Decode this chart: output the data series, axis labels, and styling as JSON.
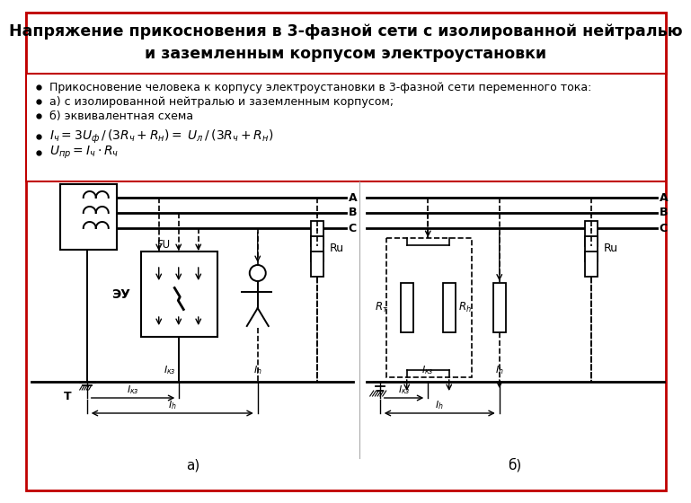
{
  "title_line1": "Напряжение прикосновения в 3-фазной сети с изолированной нейтралью",
  "title_line2": "и заземленным корпусом электроустановки",
  "bullet1": "Прикосновение человека к корпусу электроустановки в 3-фазной сети переменного тока:",
  "bullet2": "а) с изолированной нейтралью и заземленным корпусом;",
  "bullet3": "б) эквивалентная схема",
  "label_a": "а)",
  "label_b": "б)",
  "bg_color": "#ffffff",
  "border_color": "#c00000",
  "text_color": "#000000"
}
